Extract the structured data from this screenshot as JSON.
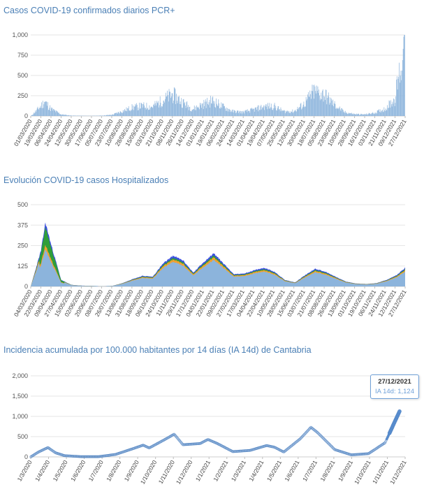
{
  "charts": [
    {
      "title": "Casos COVID-19 confirmados diarios PCR+",
      "type": "bar",
      "yticks": [
        "0",
        "250",
        "500",
        "750",
        "1,000"
      ],
      "ylim": [
        0,
        1000
      ],
      "xticks": [
        "01/03/2020",
        "19/03/2020",
        "06/04/2020",
        "24/04/2020",
        "12/05/2020",
        "30/05/2020",
        "17/06/2020",
        "05/07/2020",
        "23/07/2020",
        "10/08/2020",
        "28/08/2020",
        "15/09/2020",
        "03/10/2020",
        "21/10/2020",
        "08/11/2020",
        "26/11/2020",
        "14/12/2020",
        "01/01/2021",
        "19/01/2021",
        "06/02/2021",
        "24/02/2021",
        "14/03/2021",
        "01/04/2021",
        "19/04/2021",
        "07/05/2021",
        "25/05/2021",
        "12/06/2021",
        "30/06/2021",
        "18/07/2021",
        "05/08/2021",
        "23/08/2021",
        "10/09/2021",
        "28/09/2021",
        "16/10/2021",
        "03/11/2021",
        "21/11/2021",
        "09/12/2021",
        "27/12/2021"
      ],
      "color": "#8cb4dc"
    },
    {
      "title": "Evolución COVID-19 casos  Hospitalizados",
      "type": "area",
      "yticks": [
        "0",
        "125",
        "250",
        "375",
        "500"
      ],
      "ylim": [
        0,
        500
      ],
      "xticks": [
        "04/03/2020",
        "22/03/2020",
        "09/04/2020",
        "27/04/2020",
        "15/05/2020",
        "02/06/2020",
        "20/06/2020",
        "08/07/2020",
        "26/07/2020",
        "13/08/2020",
        "31/08/2020",
        "18/09/2020",
        "06/10/2020",
        "24/10/2020",
        "11/11/2020",
        "29/11/2020",
        "17/12/2020",
        "04/01/2021",
        "22/01/2021",
        "09/02/2021",
        "27/02/2021",
        "17/03/2021",
        "04/04/2021",
        "22/04/2021",
        "10/05/2021",
        "28/05/2021",
        "15/06/2021",
        "03/07/2021",
        "21/07/2021",
        "08/08/2021",
        "26/08/2021",
        "13/09/2021",
        "01/10/2021",
        "19/10/2021",
        "06/11/2021",
        "24/11/2021",
        "12/12/2021",
        "27/12/2021"
      ],
      "colors": [
        "#3b4fe0",
        "#2f9e3a",
        "#f0a030",
        "#8cb4dc"
      ]
    },
    {
      "title": "Incidencia acumulada por 100.000 habitantes por 14 días (IA 14d) de Cantabria",
      "type": "scatter",
      "yticks": [
        "0",
        "500",
        "1,000",
        "1,500",
        "2,000"
      ],
      "ylim": [
        0,
        2000
      ],
      "xticks": [
        "1/3/2020",
        "1/4/2020",
        "1/5/2020",
        "1/6/2020",
        "1/7/2020",
        "1/8/2020",
        "1/9/2020",
        "1/10/2020",
        "1/11/2020",
        "1/12/2020",
        "1/1/2021",
        "1/2/2021",
        "1/3/2021",
        "1/4/2021",
        "1/5/2021",
        "1/6/2021",
        "1/7/2021",
        "1/8/2021",
        "1/9/2021",
        "1/10/2021",
        "1/11/2021",
        "1/12/2021"
      ],
      "color": "#4a7fc0",
      "tooltip": {
        "date": "27/12/2021",
        "label": "IA 14d: 1,124"
      }
    }
  ],
  "chart_data": [
    {
      "type": "bar",
      "title": "Casos COVID-19 confirmados diarios PCR+",
      "ylim": [
        0,
        1000
      ],
      "x_range": [
        "01/03/2020",
        "27/12/2021"
      ],
      "series": [
        {
          "values_approx": {
            "01/03/2020": 0,
            "19/03/2020": 130,
            "25/03/2020": 190,
            "06/04/2020": 90,
            "24/04/2020": 20,
            "12/05/2020": 5,
            "30/05/2020": 3,
            "17/06/2020": 2,
            "05/07/2020": 5,
            "23/07/2020": 15,
            "10/08/2020": 60,
            "28/08/2020": 110,
            "15/09/2020": 130,
            "03/10/2020": 120,
            "21/10/2020": 200,
            "08/11/2020": 280,
            "26/11/2020": 180,
            "14/12/2020": 90,
            "01/01/2021": 150,
            "19/01/2021": 200,
            "06/02/2021": 120,
            "24/02/2021": 60,
            "14/03/2021": 50,
            "01/04/2021": 80,
            "19/04/2021": 120,
            "07/05/2021": 130,
            "25/05/2021": 60,
            "12/06/2021": 60,
            "30/06/2021": 150,
            "18/07/2021": 320,
            "05/08/2021": 280,
            "23/08/2021": 150,
            "10/09/2021": 50,
            "28/09/2021": 25,
            "16/10/2021": 20,
            "03/11/2021": 40,
            "21/11/2021": 90,
            "09/12/2021": 220,
            "27/12/2021": 950
          }
        }
      ]
    },
    {
      "type": "area",
      "title": "Evolución COVID-19 casos  Hospitalizados",
      "ylim": [
        0,
        500
      ],
      "x_range": [
        "04/03/2020",
        "27/12/2021"
      ],
      "series": [
        {
          "values_approx": {
            "04/03/2020": 0,
            "22/03/2020": 220,
            "30/03/2020": 395,
            "09/04/2020": 260,
            "27/04/2020": 40,
            "15/05/2020": 10,
            "02/06/2020": 5,
            "20/06/2020": 3,
            "08/07/2020": 2,
            "26/07/2020": 3,
            "13/08/2020": 20,
            "31/08/2020": 45,
            "18/09/2020": 65,
            "06/10/2020": 60,
            "24/10/2020": 140,
            "11/11/2020": 190,
            "29/11/2020": 160,
            "17/12/2020": 85,
            "04/01/2021": 150,
            "22/01/2021": 205,
            "09/02/2021": 140,
            "27/02/2021": 75,
            "17/03/2021": 80,
            "04/04/2021": 100,
            "22/04/2021": 115,
            "10/05/2021": 90,
            "28/05/2021": 40,
            "15/06/2021": 25,
            "03/07/2021": 70,
            "21/07/2021": 110,
            "08/08/2021": 90,
            "26/08/2021": 60,
            "13/09/2021": 30,
            "01/10/2021": 18,
            "19/10/2021": 15,
            "06/11/2021": 20,
            "24/11/2021": 40,
            "12/12/2021": 70,
            "27/12/2021": 115
          }
        }
      ]
    },
    {
      "type": "scatter",
      "title": "Incidencia acumulada por 100.000 habitantes por 14 días (IA 14d) de Cantabria",
      "ylim": [
        0,
        2000
      ],
      "x_range": [
        "1/3/2020",
        "27/12/2021"
      ],
      "series": [
        {
          "name": "IA 14d",
          "values_approx": {
            "1/3/2020": 0,
            "15/3/2020": 120,
            "1/4/2020": 230,
            "15/4/2020": 100,
            "1/5/2020": 30,
            "1/6/2020": 5,
            "1/7/2020": 5,
            "1/8/2020": 60,
            "1/9/2020": 200,
            "20/9/2020": 290,
            "1/10/2020": 220,
            "1/11/2020": 450,
            "15/11/2020": 560,
            "1/12/2020": 300,
            "1/1/2021": 330,
            "15/1/2021": 430,
            "1/2/2021": 330,
            "1/3/2021": 130,
            "1/4/2021": 160,
            "1/5/2021": 280,
            "15/5/2021": 240,
            "1/6/2021": 120,
            "1/7/2021": 450,
            "20/7/2021": 730,
            "1/8/2021": 600,
            "1/9/2021": 180,
            "1/10/2021": 50,
            "1/11/2021": 80,
            "1/12/2021": 350,
            "27/12/2021": 1124
          }
        }
      ]
    }
  ]
}
